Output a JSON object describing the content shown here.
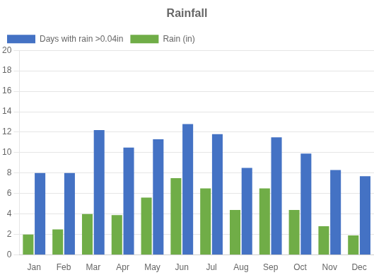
{
  "chart_data": {
    "type": "bar",
    "title": "Rainfall",
    "categories": [
      "Jan",
      "Feb",
      "Mar",
      "Apr",
      "May",
      "Jun",
      "Jul",
      "Aug",
      "Sep",
      "Oct",
      "Nov",
      "Dec"
    ],
    "series": [
      {
        "name": "Rain (in)",
        "color": "#70AD47",
        "values": [
          2.0,
          2.5,
          4.0,
          3.9,
          5.6,
          7.5,
          6.5,
          4.4,
          6.5,
          4.4,
          2.8,
          1.9
        ]
      },
      {
        "name": "Days with rain >0.04in",
        "color": "#4472C4",
        "values": [
          8.0,
          8.0,
          12.2,
          10.5,
          11.3,
          12.8,
          11.8,
          8.5,
          11.5,
          9.9,
          8.3,
          7.7
        ]
      }
    ],
    "ylim": [
      0,
      20
    ],
    "yticks": [
      0,
      2,
      4,
      6,
      8,
      10,
      12,
      14,
      16,
      18,
      20
    ],
    "grid": true,
    "legend": "upper left"
  }
}
